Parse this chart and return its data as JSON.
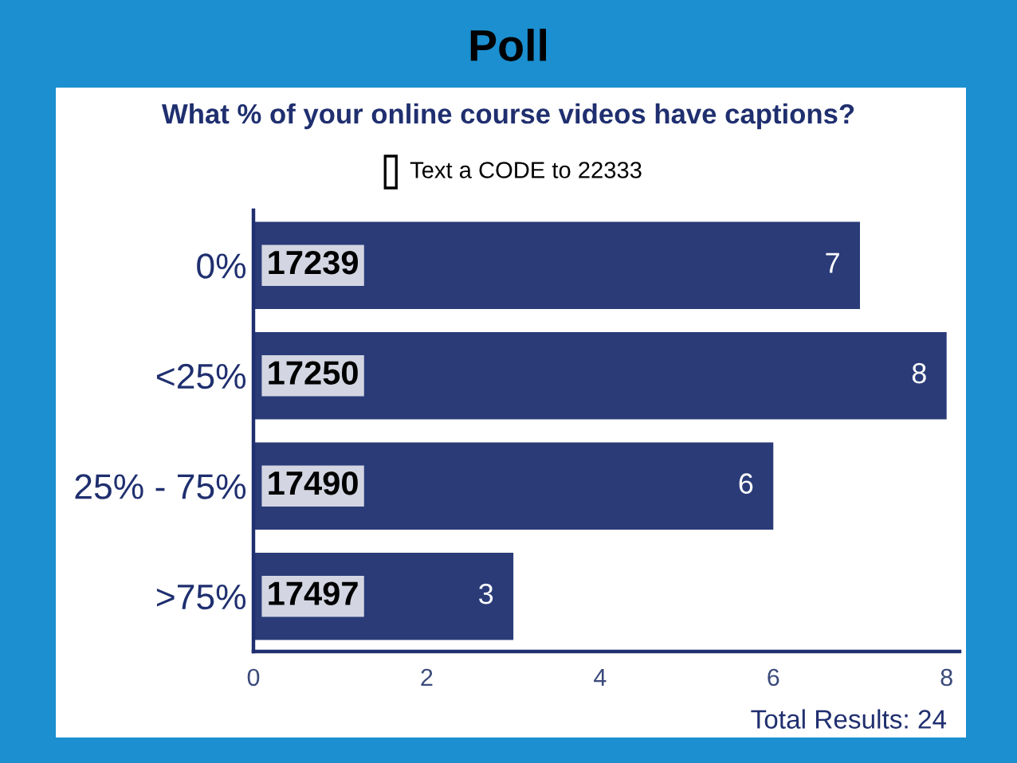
{
  "chart_data": {
    "type": "bar",
    "orientation": "horizontal",
    "title": "Poll",
    "subtitle": "What % of your online course videos have captions?",
    "categories": [
      "0%",
      "<25%",
      "25% - 75%",
      ">75%"
    ],
    "values": [
      7,
      8,
      6,
      3
    ],
    "color": "#2a3b78",
    "xlim": [
      0,
      8.15
    ],
    "xticks": [
      0,
      2,
      4,
      6,
      8
    ],
    "data_labels": true,
    "grid": false,
    "annotations": [
      "Text a CODE to 22333",
      {
        "text": "17239",
        "y": "0%"
      },
      {
        "text": "17250",
        "y": "<25%"
      },
      {
        "text": "17490",
        "y": "25% - 75%"
      },
      {
        "text": "17497",
        "y": ">75%"
      },
      "Total Results: 24"
    ]
  }
}
